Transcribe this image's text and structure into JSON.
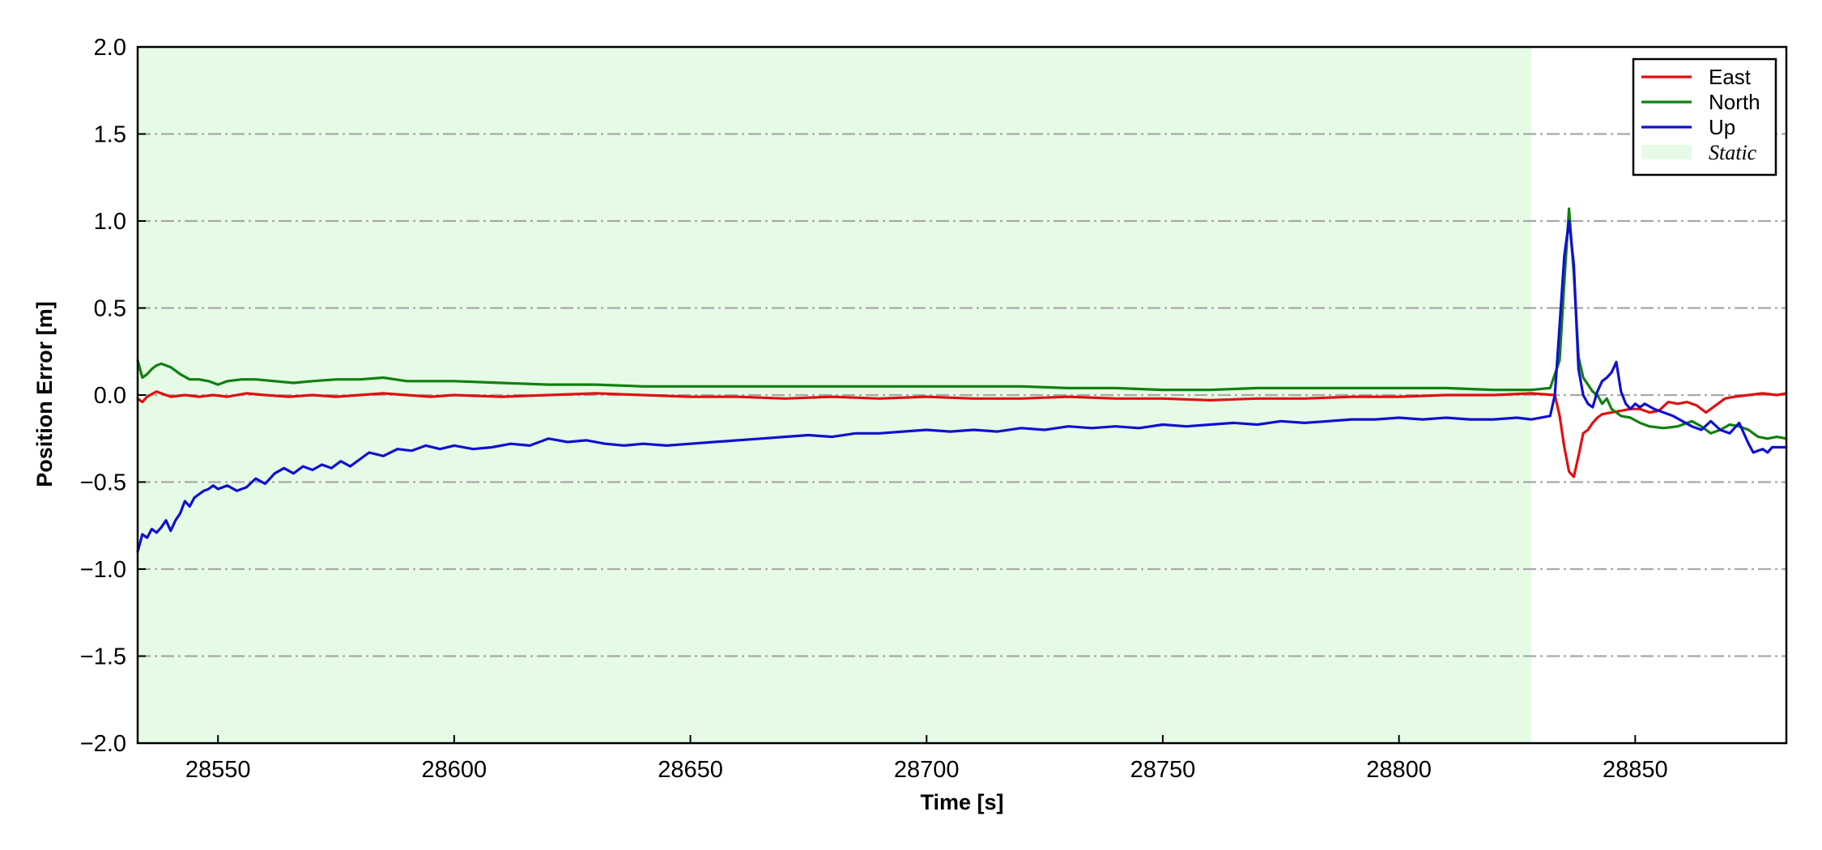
{
  "chart_data": {
    "type": "line",
    "xlabel": "Time [s]",
    "ylabel": "Position Error [m]",
    "xlim": [
      28533,
      28882
    ],
    "ylim": [
      -2.0,
      2.0
    ],
    "xticks": [
      28550,
      28600,
      28650,
      28700,
      28750,
      28800,
      28850
    ],
    "xtick_labels": [
      "28550",
      "28600",
      "28650",
      "28700",
      "28750",
      "28800",
      "28850"
    ],
    "yticks": [
      2.0,
      1.5,
      1.0,
      0.5,
      0.0,
      -0.5,
      -1.0,
      -1.5,
      -2.0
    ],
    "ytick_labels": [
      "2.0",
      "1.5",
      "1.0",
      "0.5",
      "0.0",
      "−0.5",
      "−1.0",
      "−1.5",
      "−2.0"
    ],
    "grid": "y dash-dot",
    "legend_position": "top-right",
    "shaded_region": {
      "name": "Static",
      "x": [
        28533,
        28828
      ],
      "color": "#e6fbe6"
    },
    "series": [
      {
        "name": "East",
        "color": "#e01010",
        "points": [
          [
            28533,
            -0.02
          ],
          [
            28534,
            -0.04
          ],
          [
            28535,
            -0.01
          ],
          [
            28537,
            0.02
          ],
          [
            28540,
            -0.01
          ],
          [
            28543,
            0.0
          ],
          [
            28546,
            -0.01
          ],
          [
            28549,
            0.0
          ],
          [
            28552,
            -0.01
          ],
          [
            28556,
            0.01
          ],
          [
            28560,
            0.0
          ],
          [
            28565,
            -0.01
          ],
          [
            28570,
            0.0
          ],
          [
            28575,
            -0.01
          ],
          [
            28580,
            0.0
          ],
          [
            28585,
            0.01
          ],
          [
            28590,
            0.0
          ],
          [
            28595,
            -0.01
          ],
          [
            28600,
            0.0
          ],
          [
            28610,
            -0.01
          ],
          [
            28620,
            0.0
          ],
          [
            28630,
            0.01
          ],
          [
            28640,
            0.0
          ],
          [
            28650,
            -0.01
          ],
          [
            28660,
            -0.01
          ],
          [
            28670,
            -0.02
          ],
          [
            28680,
            -0.01
          ],
          [
            28690,
            -0.02
          ],
          [
            28700,
            -0.01
          ],
          [
            28710,
            -0.02
          ],
          [
            28720,
            -0.02
          ],
          [
            28730,
            -0.01
          ],
          [
            28740,
            -0.02
          ],
          [
            28750,
            -0.02
          ],
          [
            28760,
            -0.03
          ],
          [
            28770,
            -0.02
          ],
          [
            28780,
            -0.02
          ],
          [
            28790,
            -0.01
          ],
          [
            28800,
            -0.01
          ],
          [
            28810,
            0.0
          ],
          [
            28820,
            0.0
          ],
          [
            28828,
            0.01
          ],
          [
            28833,
            0.0
          ],
          [
            28834,
            -0.12
          ],
          [
            28835,
            -0.3
          ],
          [
            28836,
            -0.44
          ],
          [
            28837,
            -0.47
          ],
          [
            28838,
            -0.35
          ],
          [
            28839,
            -0.22
          ],
          [
            28840,
            -0.2
          ],
          [
            28841,
            -0.16
          ],
          [
            28842,
            -0.13
          ],
          [
            28843,
            -0.11
          ],
          [
            28845,
            -0.1
          ],
          [
            28847,
            -0.09
          ],
          [
            28849,
            -0.08
          ],
          [
            28851,
            -0.08
          ],
          [
            28853,
            -0.1
          ],
          [
            28855,
            -0.09
          ],
          [
            28857,
            -0.04
          ],
          [
            28859,
            -0.05
          ],
          [
            28861,
            -0.04
          ],
          [
            28863,
            -0.06
          ],
          [
            28865,
            -0.1
          ],
          [
            28867,
            -0.06
          ],
          [
            28869,
            -0.02
          ],
          [
            28871,
            -0.01
          ],
          [
            28874,
            0.0
          ],
          [
            28877,
            0.01
          ],
          [
            28880,
            0.0
          ],
          [
            28882,
            0.01
          ]
        ]
      },
      {
        "name": "North",
        "color": "#108010",
        "points": [
          [
            28533,
            0.2
          ],
          [
            28534,
            0.1
          ],
          [
            28535,
            0.12
          ],
          [
            28536,
            0.15
          ],
          [
            28537,
            0.17
          ],
          [
            28538,
            0.18
          ],
          [
            28540,
            0.16
          ],
          [
            28542,
            0.12
          ],
          [
            28544,
            0.09
          ],
          [
            28546,
            0.09
          ],
          [
            28548,
            0.08
          ],
          [
            28550,
            0.06
          ],
          [
            28552,
            0.08
          ],
          [
            28555,
            0.09
          ],
          [
            28558,
            0.09
          ],
          [
            28562,
            0.08
          ],
          [
            28566,
            0.07
          ],
          [
            28570,
            0.08
          ],
          [
            28575,
            0.09
          ],
          [
            28580,
            0.09
          ],
          [
            28585,
            0.1
          ],
          [
            28590,
            0.08
          ],
          [
            28595,
            0.08
          ],
          [
            28600,
            0.08
          ],
          [
            28610,
            0.07
          ],
          [
            28620,
            0.06
          ],
          [
            28630,
            0.06
          ],
          [
            28640,
            0.05
          ],
          [
            28650,
            0.05
          ],
          [
            28660,
            0.05
          ],
          [
            28670,
            0.05
          ],
          [
            28680,
            0.05
          ],
          [
            28690,
            0.05
          ],
          [
            28700,
            0.05
          ],
          [
            28710,
            0.05
          ],
          [
            28720,
            0.05
          ],
          [
            28730,
            0.04
          ],
          [
            28740,
            0.04
          ],
          [
            28750,
            0.03
          ],
          [
            28760,
            0.03
          ],
          [
            28770,
            0.04
          ],
          [
            28780,
            0.04
          ],
          [
            28790,
            0.04
          ],
          [
            28800,
            0.04
          ],
          [
            28810,
            0.04
          ],
          [
            28820,
            0.03
          ],
          [
            28828,
            0.03
          ],
          [
            28832,
            0.04
          ],
          [
            28834,
            0.2
          ],
          [
            28835,
            0.65
          ],
          [
            28836,
            1.07
          ],
          [
            28837,
            0.7
          ],
          [
            28838,
            0.22
          ],
          [
            28839,
            0.1
          ],
          [
            28840,
            0.06
          ],
          [
            28841,
            0.02
          ],
          [
            28842,
            0.0
          ],
          [
            28843,
            -0.05
          ],
          [
            28844,
            -0.02
          ],
          [
            28845,
            -0.08
          ],
          [
            28846,
            -0.1
          ],
          [
            28847,
            -0.12
          ],
          [
            28849,
            -0.13
          ],
          [
            28851,
            -0.16
          ],
          [
            28853,
            -0.18
          ],
          [
            28856,
            -0.19
          ],
          [
            28859,
            -0.18
          ],
          [
            28862,
            -0.15
          ],
          [
            28864,
            -0.18
          ],
          [
            28866,
            -0.22
          ],
          [
            28868,
            -0.2
          ],
          [
            28870,
            -0.17
          ],
          [
            28872,
            -0.18
          ],
          [
            28874,
            -0.2
          ],
          [
            28876,
            -0.24
          ],
          [
            28878,
            -0.25
          ],
          [
            28880,
            -0.24
          ],
          [
            28882,
            -0.25
          ]
        ]
      },
      {
        "name": "Up",
        "color": "#1010d0",
        "points": [
          [
            28533,
            -0.9
          ],
          [
            28534,
            -0.8
          ],
          [
            28535,
            -0.82
          ],
          [
            28536,
            -0.77
          ],
          [
            28537,
            -0.79
          ],
          [
            28538,
            -0.76
          ],
          [
            28539,
            -0.72
          ],
          [
            28540,
            -0.78
          ],
          [
            28541,
            -0.72
          ],
          [
            28542,
            -0.68
          ],
          [
            28543,
            -0.61
          ],
          [
            28544,
            -0.64
          ],
          [
            28545,
            -0.59
          ],
          [
            28546,
            -0.57
          ],
          [
            28547,
            -0.55
          ],
          [
            28548,
            -0.54
          ],
          [
            28549,
            -0.52
          ],
          [
            28550,
            -0.54
          ],
          [
            28552,
            -0.52
          ],
          [
            28554,
            -0.55
          ],
          [
            28556,
            -0.53
          ],
          [
            28558,
            -0.48
          ],
          [
            28560,
            -0.51
          ],
          [
            28562,
            -0.45
          ],
          [
            28564,
            -0.42
          ],
          [
            28566,
            -0.45
          ],
          [
            28568,
            -0.41
          ],
          [
            28570,
            -0.43
          ],
          [
            28572,
            -0.4
          ],
          [
            28574,
            -0.42
          ],
          [
            28576,
            -0.38
          ],
          [
            28578,
            -0.41
          ],
          [
            28580,
            -0.37
          ],
          [
            28582,
            -0.33
          ],
          [
            28585,
            -0.35
          ],
          [
            28588,
            -0.31
          ],
          [
            28591,
            -0.32
          ],
          [
            28594,
            -0.29
          ],
          [
            28597,
            -0.31
          ],
          [
            28600,
            -0.29
          ],
          [
            28604,
            -0.31
          ],
          [
            28608,
            -0.3
          ],
          [
            28612,
            -0.28
          ],
          [
            28616,
            -0.29
          ],
          [
            28620,
            -0.25
          ],
          [
            28624,
            -0.27
          ],
          [
            28628,
            -0.26
          ],
          [
            28632,
            -0.28
          ],
          [
            28636,
            -0.29
          ],
          [
            28640,
            -0.28
          ],
          [
            28645,
            -0.29
          ],
          [
            28650,
            -0.28
          ],
          [
            28655,
            -0.27
          ],
          [
            28660,
            -0.26
          ],
          [
            28665,
            -0.25
          ],
          [
            28670,
            -0.24
          ],
          [
            28675,
            -0.23
          ],
          [
            28680,
            -0.24
          ],
          [
            28685,
            -0.22
          ],
          [
            28690,
            -0.22
          ],
          [
            28695,
            -0.21
          ],
          [
            28700,
            -0.2
          ],
          [
            28705,
            -0.21
          ],
          [
            28710,
            -0.2
          ],
          [
            28715,
            -0.21
          ],
          [
            28720,
            -0.19
          ],
          [
            28725,
            -0.2
          ],
          [
            28730,
            -0.18
          ],
          [
            28735,
            -0.19
          ],
          [
            28740,
            -0.18
          ],
          [
            28745,
            -0.19
          ],
          [
            28750,
            -0.17
          ],
          [
            28755,
            -0.18
          ],
          [
            28760,
            -0.17
          ],
          [
            28765,
            -0.16
          ],
          [
            28770,
            -0.17
          ],
          [
            28775,
            -0.15
          ],
          [
            28780,
            -0.16
          ],
          [
            28785,
            -0.15
          ],
          [
            28790,
            -0.14
          ],
          [
            28795,
            -0.14
          ],
          [
            28800,
            -0.13
          ],
          [
            28805,
            -0.14
          ],
          [
            28810,
            -0.13
          ],
          [
            28815,
            -0.14
          ],
          [
            28820,
            -0.14
          ],
          [
            28825,
            -0.13
          ],
          [
            28828,
            -0.14
          ],
          [
            28832,
            -0.12
          ],
          [
            28833,
            0.0
          ],
          [
            28834,
            0.4
          ],
          [
            28835,
            0.8
          ],
          [
            28836,
            1.0
          ],
          [
            28837,
            0.75
          ],
          [
            28838,
            0.15
          ],
          [
            28839,
            0.0
          ],
          [
            28840,
            -0.05
          ],
          [
            28841,
            -0.07
          ],
          [
            28842,
            0.02
          ],
          [
            28843,
            0.08
          ],
          [
            28844,
            0.1
          ],
          [
            28845,
            0.13
          ],
          [
            28846,
            0.19
          ],
          [
            28847,
            0.02
          ],
          [
            28848,
            -0.05
          ],
          [
            28849,
            -0.08
          ],
          [
            28850,
            -0.05
          ],
          [
            28851,
            -0.07
          ],
          [
            28852,
            -0.05
          ],
          [
            28854,
            -0.08
          ],
          [
            28856,
            -0.1
          ],
          [
            28858,
            -0.12
          ],
          [
            28860,
            -0.15
          ],
          [
            28862,
            -0.18
          ],
          [
            28864,
            -0.2
          ],
          [
            28866,
            -0.15
          ],
          [
            28868,
            -0.2
          ],
          [
            28870,
            -0.22
          ],
          [
            28872,
            -0.16
          ],
          [
            28874,
            -0.28
          ],
          [
            28875,
            -0.33
          ],
          [
            28876,
            -0.32
          ],
          [
            28877,
            -0.31
          ],
          [
            28878,
            -0.33
          ],
          [
            28879,
            -0.3
          ],
          [
            28882,
            -0.3
          ]
        ]
      }
    ]
  }
}
